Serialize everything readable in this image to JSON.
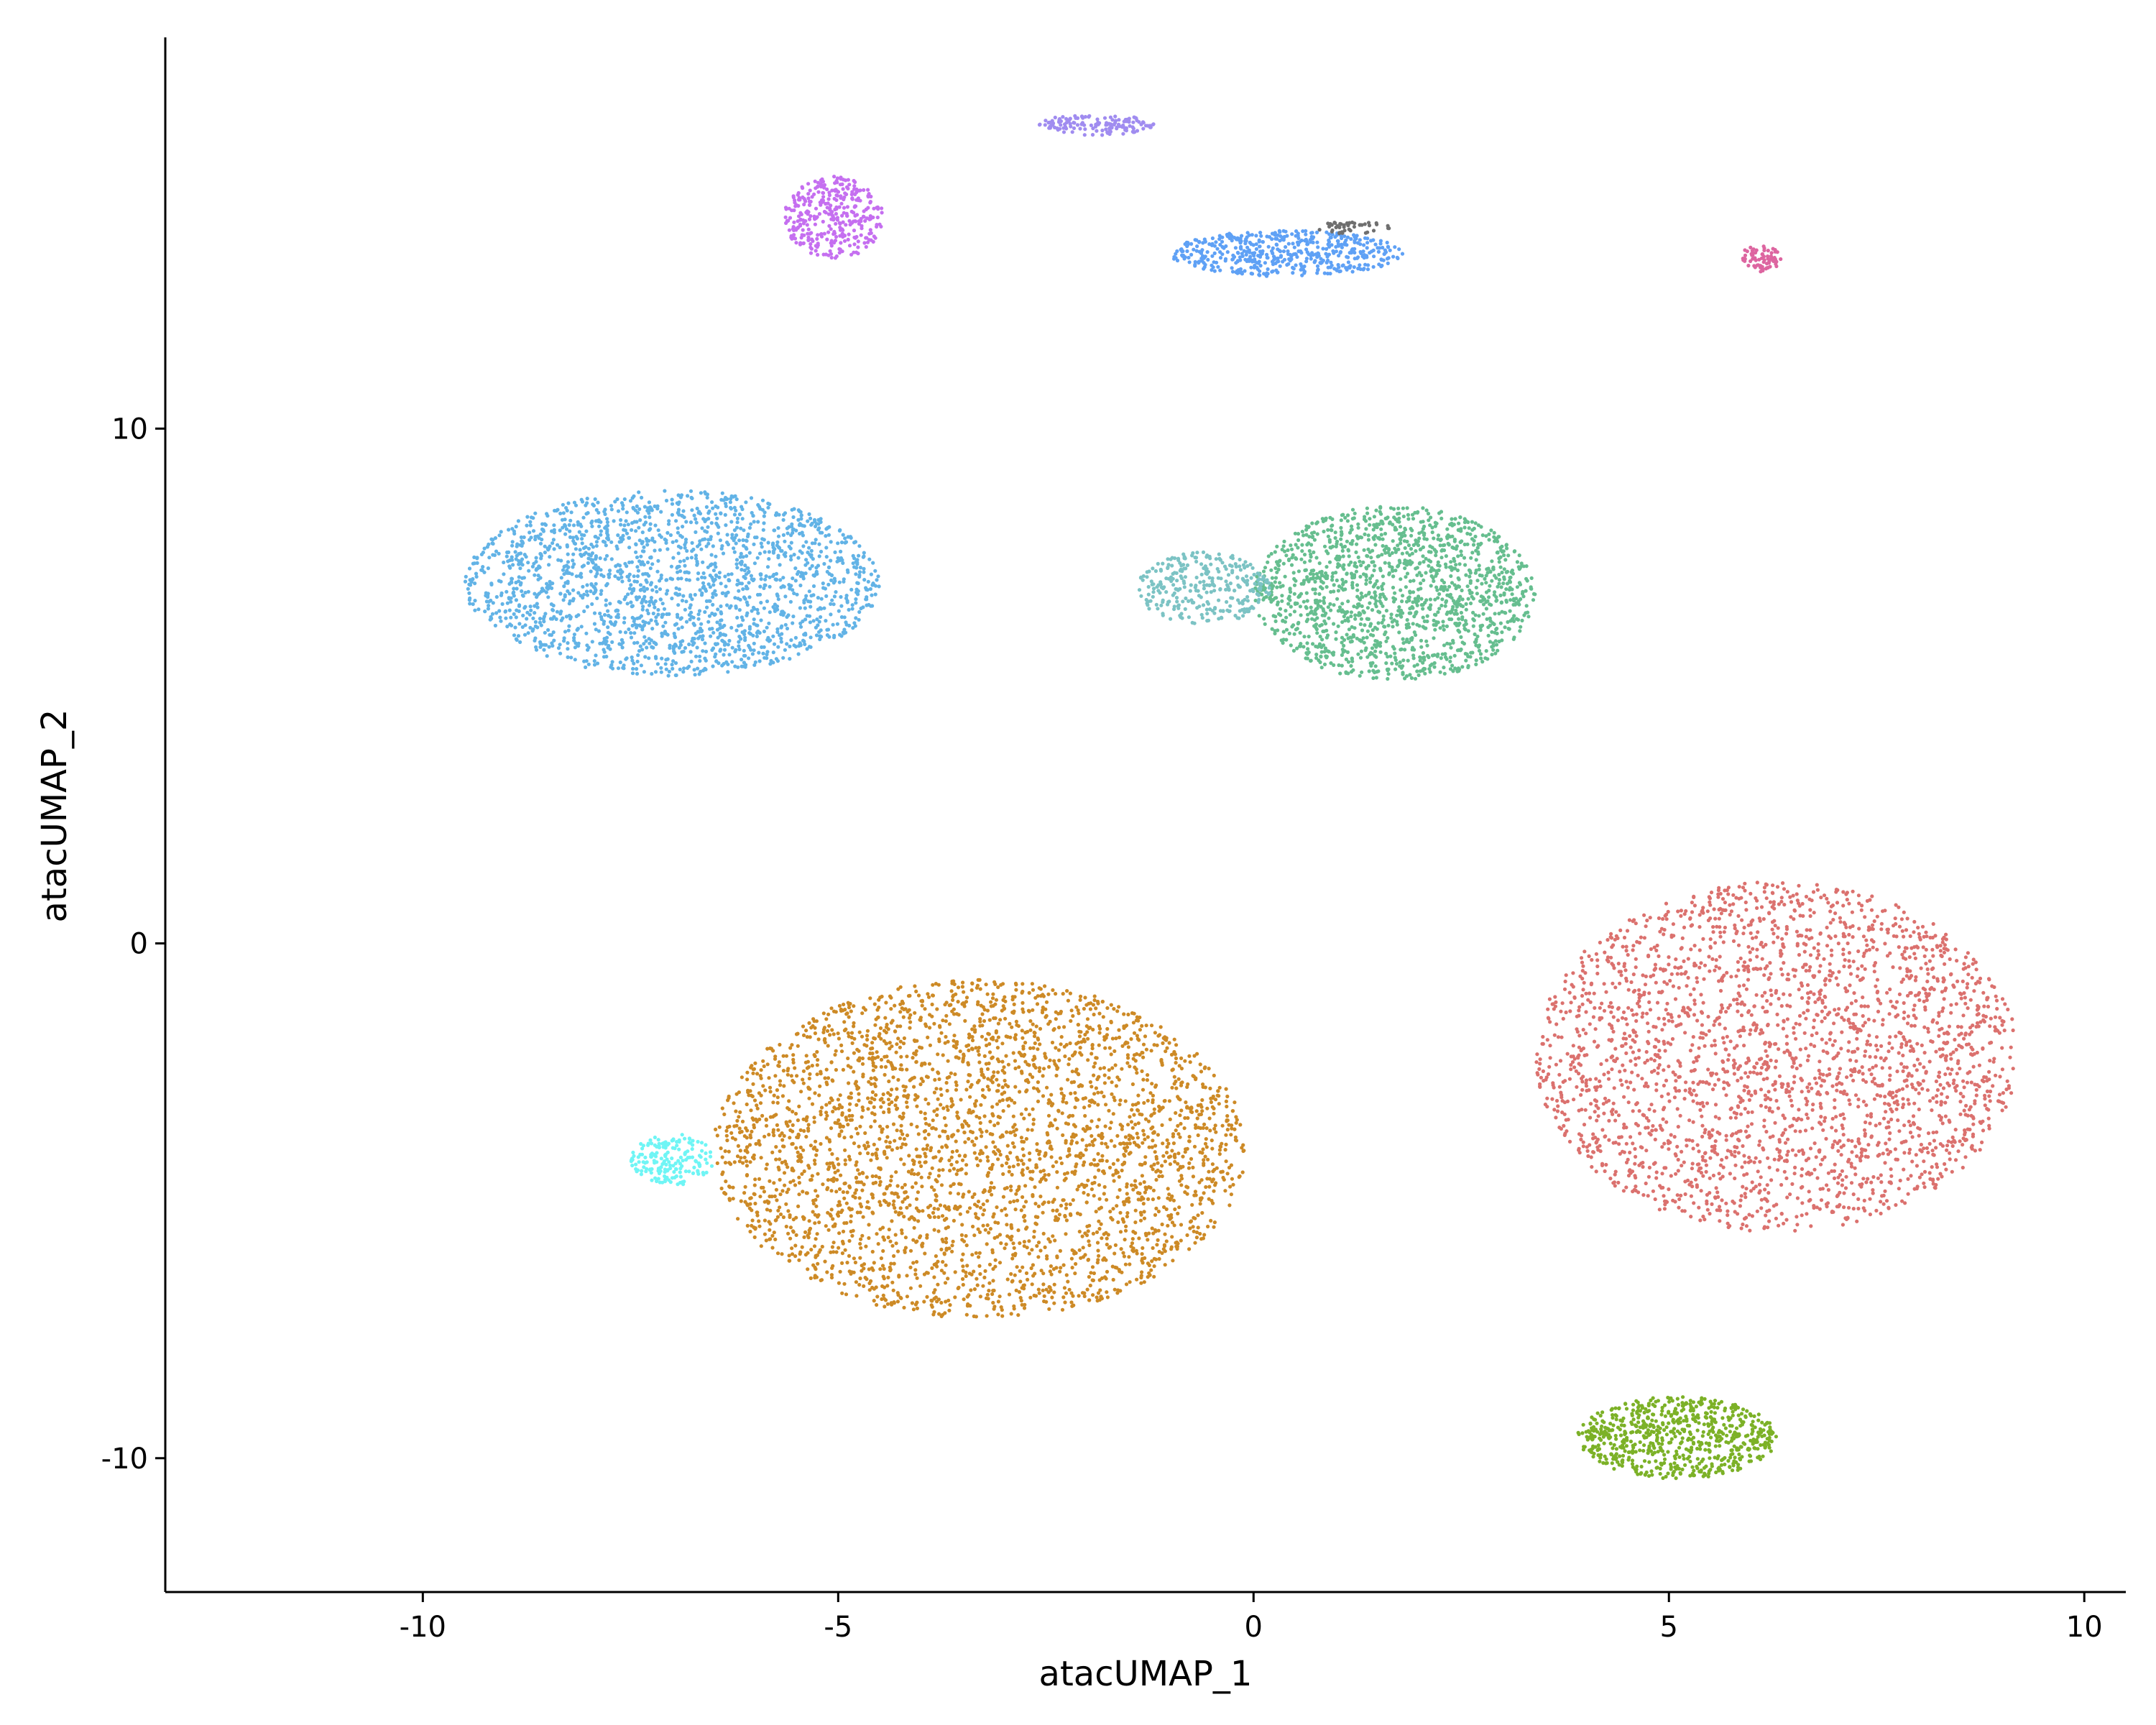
{
  "chart_data": {
    "type": "scatter",
    "title": "",
    "xlabel": "atacUMAP_1",
    "ylabel": "atacUMAP_2",
    "xlim": [
      -13.1,
      10.5
    ],
    "ylim": [
      -12.6,
      17.6
    ],
    "x_ticks": [
      -10,
      -5,
      0,
      5,
      10
    ],
    "x_tick_labels": [
      "-10",
      "-5",
      "0",
      "5",
      "10"
    ],
    "y_ticks": [
      -10,
      0,
      10
    ],
    "y_tick_labels": [
      "-10",
      "0",
      "10"
    ],
    "grid": false,
    "legend": "none",
    "marker_color_note": "points colored by cluster",
    "clusters": [
      {
        "color": "#db716e",
        "center": [
          6.3,
          -2.2
        ],
        "radius": [
          2.9,
          3.4
        ],
        "points": 2600
      },
      {
        "color": "#cd8a26",
        "center": [
          -3.3,
          -4.0
        ],
        "radius": [
          3.2,
          3.3
        ],
        "points": 3200
      },
      {
        "color": "#62b3e6",
        "center": [
          -7.0,
          7.0
        ],
        "radius": [
          2.5,
          1.8
        ],
        "points": 1900
      },
      {
        "color": "#66be8f",
        "center": [
          1.7,
          6.8
        ],
        "radius": [
          1.7,
          1.7
        ],
        "points": 1500
      },
      {
        "color": "#7cc3c4",
        "center": [
          -0.6,
          6.9
        ],
        "radius": [
          0.8,
          0.7
        ],
        "points": 300
      },
      {
        "color": "#7cb127",
        "center": [
          5.1,
          -9.6
        ],
        "radius": [
          1.2,
          0.8
        ],
        "points": 700
      },
      {
        "color": "#c56ff0",
        "center": [
          -5.05,
          14.1
        ],
        "radius": [
          0.6,
          0.8
        ],
        "points": 350
      },
      {
        "color": "#5fa1f5",
        "center": [
          0.4,
          13.4
        ],
        "radius": [
          1.4,
          0.45
        ],
        "points": 500
      },
      {
        "color": "#6ff5f5",
        "center": [
          -7.0,
          -4.2
        ],
        "radius": [
          0.5,
          0.5
        ],
        "points": 180
      },
      {
        "color": "#a08cf0",
        "center": [
          -1.9,
          15.9
        ],
        "radius": [
          0.7,
          0.2
        ],
        "points": 140
      },
      {
        "color": "#dd65a0",
        "center": [
          6.1,
          13.3
        ],
        "radius": [
          0.25,
          0.25
        ],
        "points": 70
      },
      {
        "color": "#6f6f6f",
        "center": [
          1.2,
          13.9
        ],
        "radius": [
          0.45,
          0.12
        ],
        "points": 45
      }
    ]
  }
}
